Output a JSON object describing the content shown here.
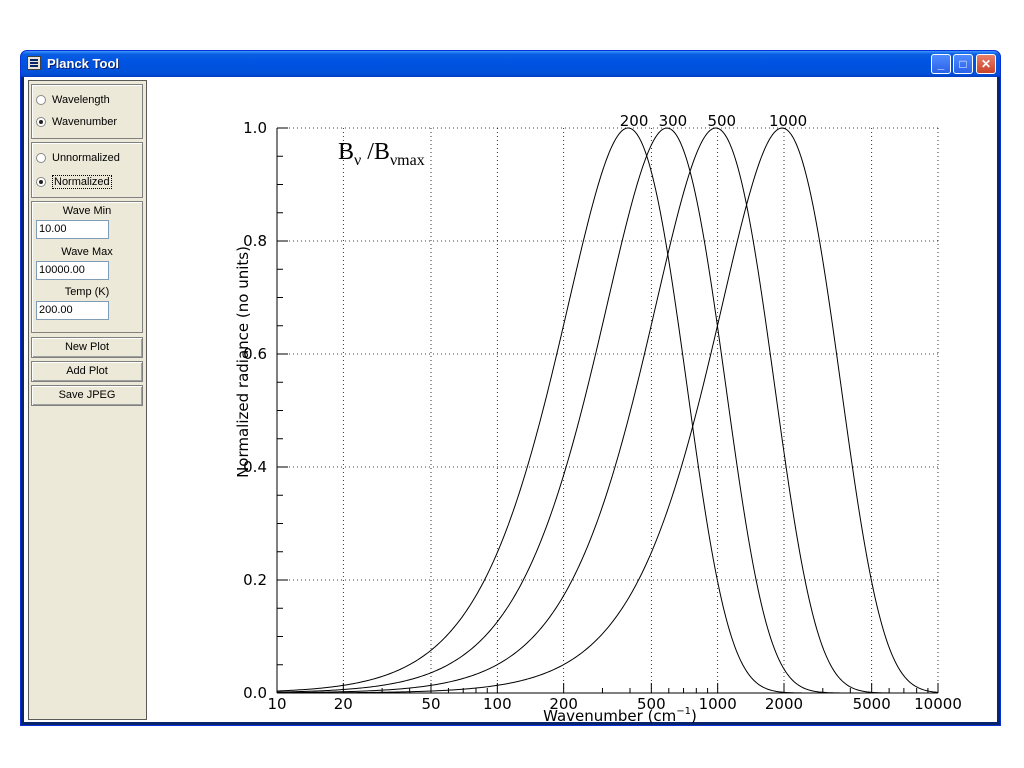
{
  "window": {
    "title": "Planck Tool",
    "icon": "app-window-icon"
  },
  "controls": {
    "mode_options": [
      {
        "label": "Wavelength",
        "selected": false
      },
      {
        "label": "Wavenumber",
        "selected": true
      }
    ],
    "norm_options": [
      {
        "label": "Unnormalized",
        "selected": false
      },
      {
        "label": "Normalized",
        "selected": true
      }
    ],
    "fields": {
      "wave_min": {
        "label": "Wave Min",
        "value": "10.00"
      },
      "wave_max": {
        "label": "Wave Max",
        "value": "10000.00"
      },
      "temp": {
        "label": "Temp (K)",
        "value": "200.00"
      }
    },
    "buttons": {
      "new_plot": "New Plot",
      "add_plot": "Add Plot",
      "save_jpeg": "Save JPEG"
    }
  },
  "chart_data": {
    "type": "line",
    "xscale": "log",
    "xlim": [
      10,
      10000
    ],
    "ylim": [
      0,
      1
    ],
    "xlabel_main": "Wavenumber (cm",
    "xlabel_sup": "−1",
    "xlabel_end": ")",
    "ylabel": "Normalized radiance (no units)",
    "annotation": {
      "main": "B",
      "sub1": "ν",
      "mid": " /B",
      "sub2": "νmax"
    },
    "grid": true,
    "x_ticks": [
      {
        "v": 10,
        "label": "10"
      },
      {
        "v": 20,
        "label": "20"
      },
      {
        "v": 50,
        "label": "50"
      },
      {
        "v": 100,
        "label": "100"
      },
      {
        "v": 200,
        "label": "200"
      },
      {
        "v": 500,
        "label": "500"
      },
      {
        "v": 1000,
        "label": "1000"
      },
      {
        "v": 2000,
        "label": "2000"
      },
      {
        "v": 5000,
        "label": "5000"
      },
      {
        "v": 10000,
        "label": "10000"
      }
    ],
    "y_ticks": [
      {
        "v": 0,
        "label": "0.0"
      },
      {
        "v": 0.2,
        "label": "0.2"
      },
      {
        "v": 0.4,
        "label": "0.4"
      },
      {
        "v": 0.6,
        "label": "0.6"
      },
      {
        "v": 0.8,
        "label": "0.8"
      },
      {
        "v": 1.0,
        "label": "1.0"
      }
    ],
    "series": [
      {
        "temperature": 200,
        "label": "200"
      },
      {
        "temperature": 300,
        "label": "300"
      },
      {
        "temperature": 500,
        "label": "500"
      },
      {
        "temperature": 1000,
        "label": "1000"
      }
    ]
  }
}
